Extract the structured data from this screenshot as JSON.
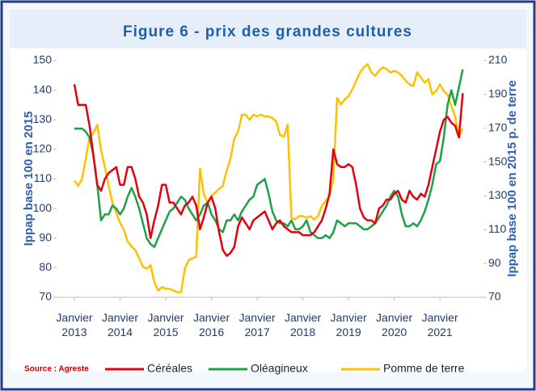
{
  "chart_data": {
    "type": "line",
    "title": "Figure 6 - prix des grandes cultures",
    "ylabel": "Ippap base 100 en 2015",
    "y2label": "Ippap base 100 en 2015 p. de terre",
    "source": "Source : Agreste",
    "categories": [
      "Janvier 2013",
      null,
      null,
      null,
      null,
      null,
      null,
      null,
      null,
      null,
      null,
      null,
      "Janvier 2014",
      null,
      null,
      null,
      null,
      null,
      null,
      null,
      null,
      null,
      null,
      null,
      "Janvier 2015",
      null,
      null,
      null,
      null,
      null,
      null,
      null,
      null,
      null,
      null,
      null,
      "Janvier 2016",
      null,
      null,
      null,
      null,
      null,
      null,
      null,
      null,
      null,
      null,
      null,
      "Janvier 2017",
      null,
      null,
      null,
      null,
      null,
      null,
      null,
      null,
      null,
      null,
      null,
      "Janvier 2018",
      null,
      null,
      null,
      null,
      null,
      null,
      null,
      null,
      null,
      null,
      null,
      "Janvier 2019",
      null,
      null,
      null,
      null,
      null,
      null,
      null,
      null,
      null,
      null,
      null,
      "Janvier 2020",
      null,
      null,
      null,
      null,
      null,
      null,
      null,
      null,
      null,
      null,
      null,
      "Janvier 2021",
      null,
      null,
      null,
      null,
      null,
      null
    ],
    "ylim": [
      70,
      150
    ],
    "yticks": [
      70,
      80,
      90,
      100,
      110,
      120,
      130,
      140,
      150
    ],
    "y2lim": [
      70,
      210
    ],
    "y2ticks": [
      70,
      90,
      110,
      130,
      150,
      170,
      190,
      210
    ],
    "series": [
      {
        "name": "Céréales",
        "color": "#e3000f",
        "values": [
          142,
          135,
          135,
          135,
          128,
          118,
          108,
          106,
          110,
          112,
          113,
          114,
          108,
          108,
          114,
          114,
          110,
          104,
          102,
          98,
          90,
          96,
          101,
          108,
          108,
          102,
          102,
          100,
          98,
          101,
          102,
          104,
          101,
          93,
          97,
          102,
          104,
          100,
          92,
          86,
          84,
          85,
          87,
          94,
          97,
          95,
          93,
          96,
          97,
          98,
          99,
          96,
          93,
          95,
          96,
          94,
          93,
          92,
          92,
          92,
          91,
          91,
          91,
          92,
          94,
          96,
          100,
          105,
          120,
          115,
          114,
          114,
          115,
          114,
          108,
          100,
          97,
          96,
          96,
          95,
          100,
          101,
          103,
          103,
          105,
          106,
          103,
          102,
          106,
          104,
          103,
          105,
          104,
          108,
          114,
          120,
          126,
          130,
          131,
          129,
          128,
          124,
          139
        ]
      },
      {
        "name": "Oléagineux",
        "color": "#1fa046",
        "values": [
          127,
          127,
          127,
          126,
          124,
          118,
          108,
          96,
          98,
          98,
          101,
          100,
          98,
          100,
          104,
          107,
          104,
          100,
          95,
          90,
          88,
          87,
          90,
          93,
          96,
          99,
          100,
          102,
          104,
          103,
          100,
          98,
          96,
          98,
          101,
          102,
          98,
          96,
          93,
          92,
          96,
          96,
          98,
          96,
          99,
          101,
          103,
          104,
          108,
          109,
          110,
          105,
          99,
          96,
          95,
          95,
          94,
          96,
          93,
          93,
          94,
          96,
          92,
          91,
          90,
          90,
          91,
          90,
          92,
          96,
          95,
          94,
          95,
          95,
          95,
          94,
          93,
          93,
          94,
          95,
          97,
          99,
          101,
          104,
          106,
          104,
          98,
          94,
          94,
          95,
          94,
          96,
          99,
          103,
          108,
          115,
          116,
          124,
          135,
          140,
          135,
          141,
          147
        ]
      },
      {
        "name": "Pomme de terre",
        "color": "#ffc000",
        "axis": "y2",
        "values": [
          139,
          136,
          140,
          152,
          165,
          167,
          172,
          157,
          147,
          136,
          126,
          120,
          114,
          110,
          103,
          100,
          98,
          93,
          88,
          87,
          89,
          79,
          74,
          76,
          75,
          75,
          74,
          73,
          73,
          87,
          92,
          93,
          94,
          146,
          131,
          126,
          130,
          132,
          134,
          136,
          145,
          152,
          164,
          168,
          178,
          178,
          175,
          178,
          177,
          178,
          177,
          177,
          176,
          174,
          166,
          165,
          172,
          117,
          116,
          118,
          118,
          117,
          118,
          116,
          118,
          124,
          127,
          130,
          140,
          188,
          184,
          187,
          189,
          193,
          198,
          203,
          206,
          208,
          203,
          201,
          204,
          206,
          205,
          203,
          204,
          203,
          201,
          198,
          196,
          195,
          203,
          200,
          197,
          199,
          190,
          192,
          196,
          192,
          190,
          183,
          177,
          165,
          170
        ]
      }
    ]
  }
}
